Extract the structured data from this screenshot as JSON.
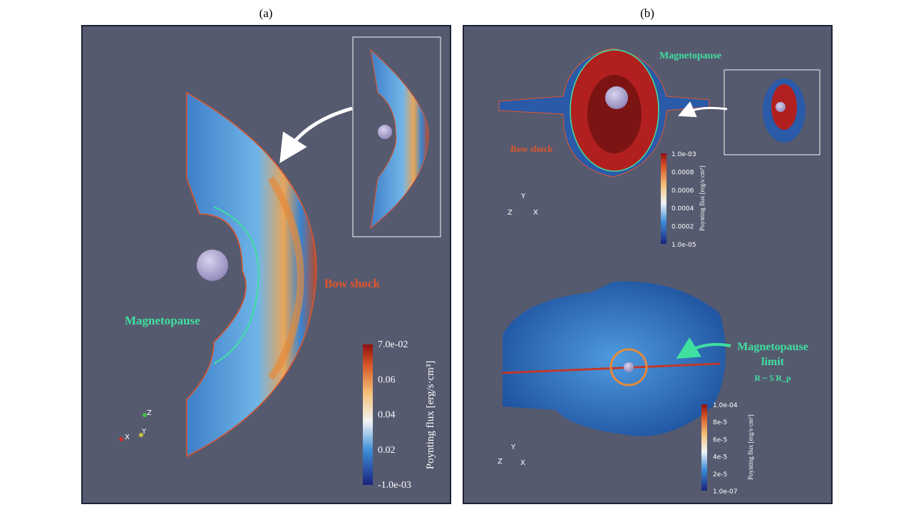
{
  "panel_a": {
    "label": "(a)",
    "bow_shock": "Bow shock",
    "magnetopause": "Magnetopause",
    "colorbar": {
      "title": "Poynting flux [erg/s·cm³]",
      "ticks": [
        "7.0e-02",
        "0.06",
        "0.04",
        "0.02",
        "-1.0e-03"
      ]
    },
    "axes": [
      "Z",
      "X",
      "Y"
    ]
  },
  "panel_b": {
    "label": "(b)",
    "magnetopause": "Magnetopause",
    "bow_shock": "Bow shock",
    "colorbar_top": {
      "title": "Poynting flux [erg/s·cm³]",
      "ticks": [
        "1.0e-03",
        "0.0008",
        "0.0006",
        "0.0004",
        "0.0002",
        "1.0e-05"
      ]
    },
    "axes_top": [
      "Y",
      "Z",
      "X"
    ],
    "limit_label": [
      "Magnetopause",
      "limit"
    ],
    "limit_radius": "R ~ 5 R_p",
    "colorbar_bottom": {
      "title": "Poynting flux [erg/s·cm³]",
      "ticks": [
        "1.0e-04",
        "8e-5",
        "6e-5",
        "4e-5",
        "2e-5",
        "1.0e-07"
      ]
    },
    "axes_bottom": [
      "Y",
      "Z",
      "X"
    ]
  }
}
